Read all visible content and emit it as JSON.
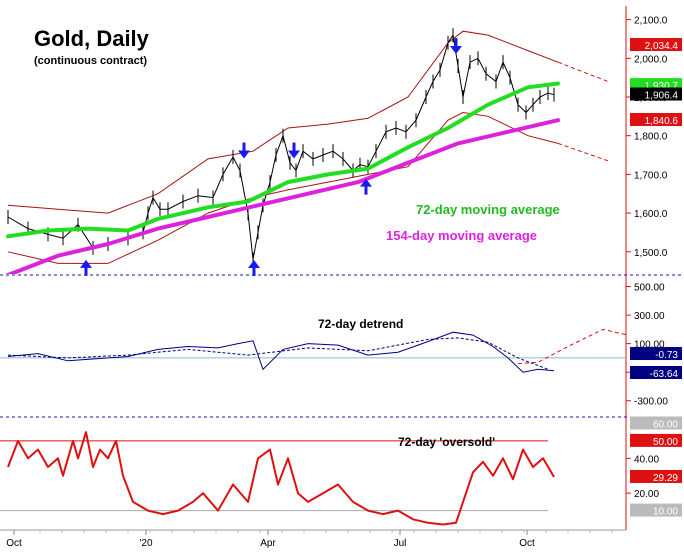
{
  "chart_data": [
    {
      "type": "line",
      "title": "Gold, Daily",
      "subtitle": "(continuous contract)",
      "x_tick_labels": [
        "Oct",
        "'20",
        "Apr",
        "Jul",
        "Oct"
      ],
      "y_tick_labels": [
        "2,100.0",
        "2,000.0",
        "1,900.0",
        "1,800.0",
        "1,700.0",
        "1,600.0",
        "1,500.0"
      ],
      "ylim": [
        1440,
        2130
      ],
      "price_bars": {
        "name": "Gold",
        "x": [
          0,
          20,
          40,
          55,
          70,
          85,
          100,
          120,
          135,
          140,
          145,
          152,
          160,
          175,
          190,
          205,
          215,
          225,
          232,
          240,
          245,
          250,
          255,
          262,
          268,
          275,
          282,
          288,
          295,
          305,
          315,
          325,
          335,
          345,
          352,
          360,
          368,
          378,
          388,
          398,
          408,
          418,
          425,
          432,
          440,
          445,
          450,
          455,
          462,
          470,
          478,
          488,
          495,
          502,
          510,
          518,
          525,
          532,
          540,
          546
        ],
        "y": [
          1590,
          1560,
          1545,
          1535,
          1570,
          1510,
          1520,
          1535,
          1550,
          1600,
          1640,
          1610,
          1610,
          1630,
          1645,
          1640,
          1700,
          1745,
          1710,
          1600,
          1480,
          1550,
          1620,
          1680,
          1750,
          1800,
          1730,
          1710,
          1760,
          1740,
          1750,
          1760,
          1740,
          1710,
          1725,
          1720,
          1760,
          1810,
          1820,
          1810,
          1840,
          1900,
          1940,
          1970,
          2040,
          2060,
          1980,
          1900,
          1990,
          2000,
          1960,
          1940,
          1990,
          1950,
          1880,
          1860,
          1880,
          1900,
          1910,
          1906
        ]
      },
      "bands": {
        "x": [
          0,
          50,
          100,
          150,
          200,
          245,
          280,
          320,
          360,
          400,
          440,
          455,
          480,
          520,
          550
        ],
        "upper": [
          1620,
          1610,
          1600,
          1650,
          1740,
          1760,
          1820,
          1830,
          1845,
          1900,
          2040,
          2070,
          2060,
          2020,
          1990
        ],
        "lower": [
          1500,
          1470,
          1470,
          1530,
          1600,
          1640,
          1660,
          1680,
          1700,
          1720,
          1840,
          1860,
          1850,
          1800,
          1780
        ]
      },
      "projected_upper": {
        "x": [
          550,
          600
        ],
        "y": [
          1990,
          1940
        ]
      },
      "projected_lower": {
        "x": [
          550,
          600
        ],
        "y": [
          1780,
          1735
        ]
      },
      "series": [
        {
          "name": "72-day moving average",
          "color": "#22dd22",
          "x": [
            0,
            40,
            80,
            120,
            150,
            200,
            240,
            280,
            320,
            360,
            400,
            440,
            480,
            520,
            550
          ],
          "y": [
            1540,
            1555,
            1560,
            1555,
            1585,
            1615,
            1630,
            1680,
            1700,
            1715,
            1770,
            1820,
            1880,
            1925,
            1935
          ]
        },
        {
          "name": "154-day moving average",
          "color": "#dd22dd",
          "x": [
            0,
            50,
            100,
            150,
            200,
            250,
            300,
            350,
            400,
            450,
            500,
            550
          ],
          "y": [
            1440,
            1490,
            1520,
            1560,
            1590,
            1620,
            1650,
            1680,
            1730,
            1780,
            1810,
            1840
          ]
        }
      ],
      "cycle_arrows": [
        {
          "x": 78,
          "direction": "up"
        },
        {
          "x": 236,
          "direction": "down"
        },
        {
          "x": 246,
          "direction": "up"
        },
        {
          "x": 286,
          "direction": "down"
        },
        {
          "x": 358,
          "direction": "up"
        },
        {
          "x": 448,
          "direction": "down"
        }
      ],
      "value_labels": [
        {
          "text": "2,034.4",
          "value": 2034.4,
          "color": "#dd1111"
        },
        {
          "text": "1,930.7",
          "value": 1930.7,
          "color": "#22dd22"
        },
        {
          "text": "1,906.4",
          "value": 1906.4,
          "color": "#000000"
        },
        {
          "text": "1,840.6",
          "value": 1840.6,
          "color": "#dd1111"
        }
      ],
      "annotations": [
        {
          "text": "72-day moving average",
          "color": "#22bb22"
        },
        {
          "text": "154-day moving average",
          "color": "#dd22dd"
        }
      ]
    },
    {
      "type": "line",
      "title": "72-day detrend",
      "y_tick_labels": [
        "500.00",
        "300.00",
        "100.00",
        "-100.00",
        "-300.00"
      ],
      "ylim": [
        -400,
        560
      ],
      "series": [
        {
          "name": "72-day detrend",
          "color": "#000080",
          "x": [
            0,
            30,
            60,
            90,
            120,
            150,
            180,
            210,
            230,
            245,
            255,
            275,
            300,
            330,
            360,
            390,
            410,
            430,
            445,
            465,
            485,
            500,
            515,
            530,
            546
          ],
          "y": [
            10,
            30,
            -20,
            -5,
            10,
            60,
            80,
            70,
            100,
            120,
            -80,
            60,
            100,
            90,
            20,
            40,
            90,
            140,
            180,
            160,
            80,
            0,
            -100,
            -80,
            -90
          ]
        },
        {
          "name": "detrend smoothed",
          "color": "#000080",
          "x": [
            0,
            60,
            120,
            180,
            240,
            300,
            360,
            420,
            450,
            480,
            510,
            540
          ],
          "y": [
            20,
            0,
            20,
            60,
            20,
            70,
            50,
            130,
            140,
            110,
            0,
            -80
          ]
        }
      ],
      "projection": {
        "x": [
          510,
          530,
          560,
          595,
          620
        ],
        "y": [
          -40,
          -30,
          80,
          200,
          160
        ]
      },
      "value_labels": [
        {
          "text": "-0.73",
          "value": -0.73,
          "color": "#000080"
        },
        {
          "text": "-63.64",
          "value": -63.64,
          "color": "#000080"
        }
      ]
    },
    {
      "type": "line",
      "title": "72-day 'oversold'",
      "y_tick_labels": [
        "40.00",
        "20.00"
      ],
      "ylim": [
        0,
        62
      ],
      "reference_lines": [
        50,
        10
      ],
      "series": [
        {
          "name": "72-day 'oversold'",
          "color": "#dd1111",
          "x": [
            0,
            10,
            20,
            30,
            40,
            50,
            55,
            65,
            70,
            78,
            85,
            92,
            100,
            108,
            115,
            125,
            140,
            155,
            170,
            185,
            195,
            210,
            225,
            240,
            250,
            262,
            270,
            280,
            290,
            300,
            315,
            330,
            345,
            360,
            375,
            390,
            405,
            420,
            435,
            448,
            458,
            465,
            475,
            485,
            495,
            505,
            515,
            525,
            535,
            546
          ],
          "y": [
            35,
            50,
            40,
            45,
            35,
            40,
            30,
            50,
            40,
            55,
            35,
            45,
            40,
            50,
            30,
            15,
            10,
            8,
            10,
            15,
            20,
            10,
            25,
            15,
            40,
            45,
            25,
            40,
            20,
            15,
            20,
            25,
            15,
            10,
            8,
            10,
            5,
            3,
            2,
            3,
            20,
            32,
            38,
            30,
            40,
            28,
            45,
            35,
            40,
            29.29
          ]
        }
      ],
      "value_labels": [
        {
          "text": "60.00",
          "value": 60,
          "color": "#bbbbbb"
        },
        {
          "text": "50.00",
          "value": 50,
          "color": "#dd1111"
        },
        {
          "text": "29.29",
          "value": 29.29,
          "color": "#dd1111"
        },
        {
          "text": "10.00",
          "value": 10,
          "color": "#bbbbbb"
        }
      ]
    }
  ]
}
